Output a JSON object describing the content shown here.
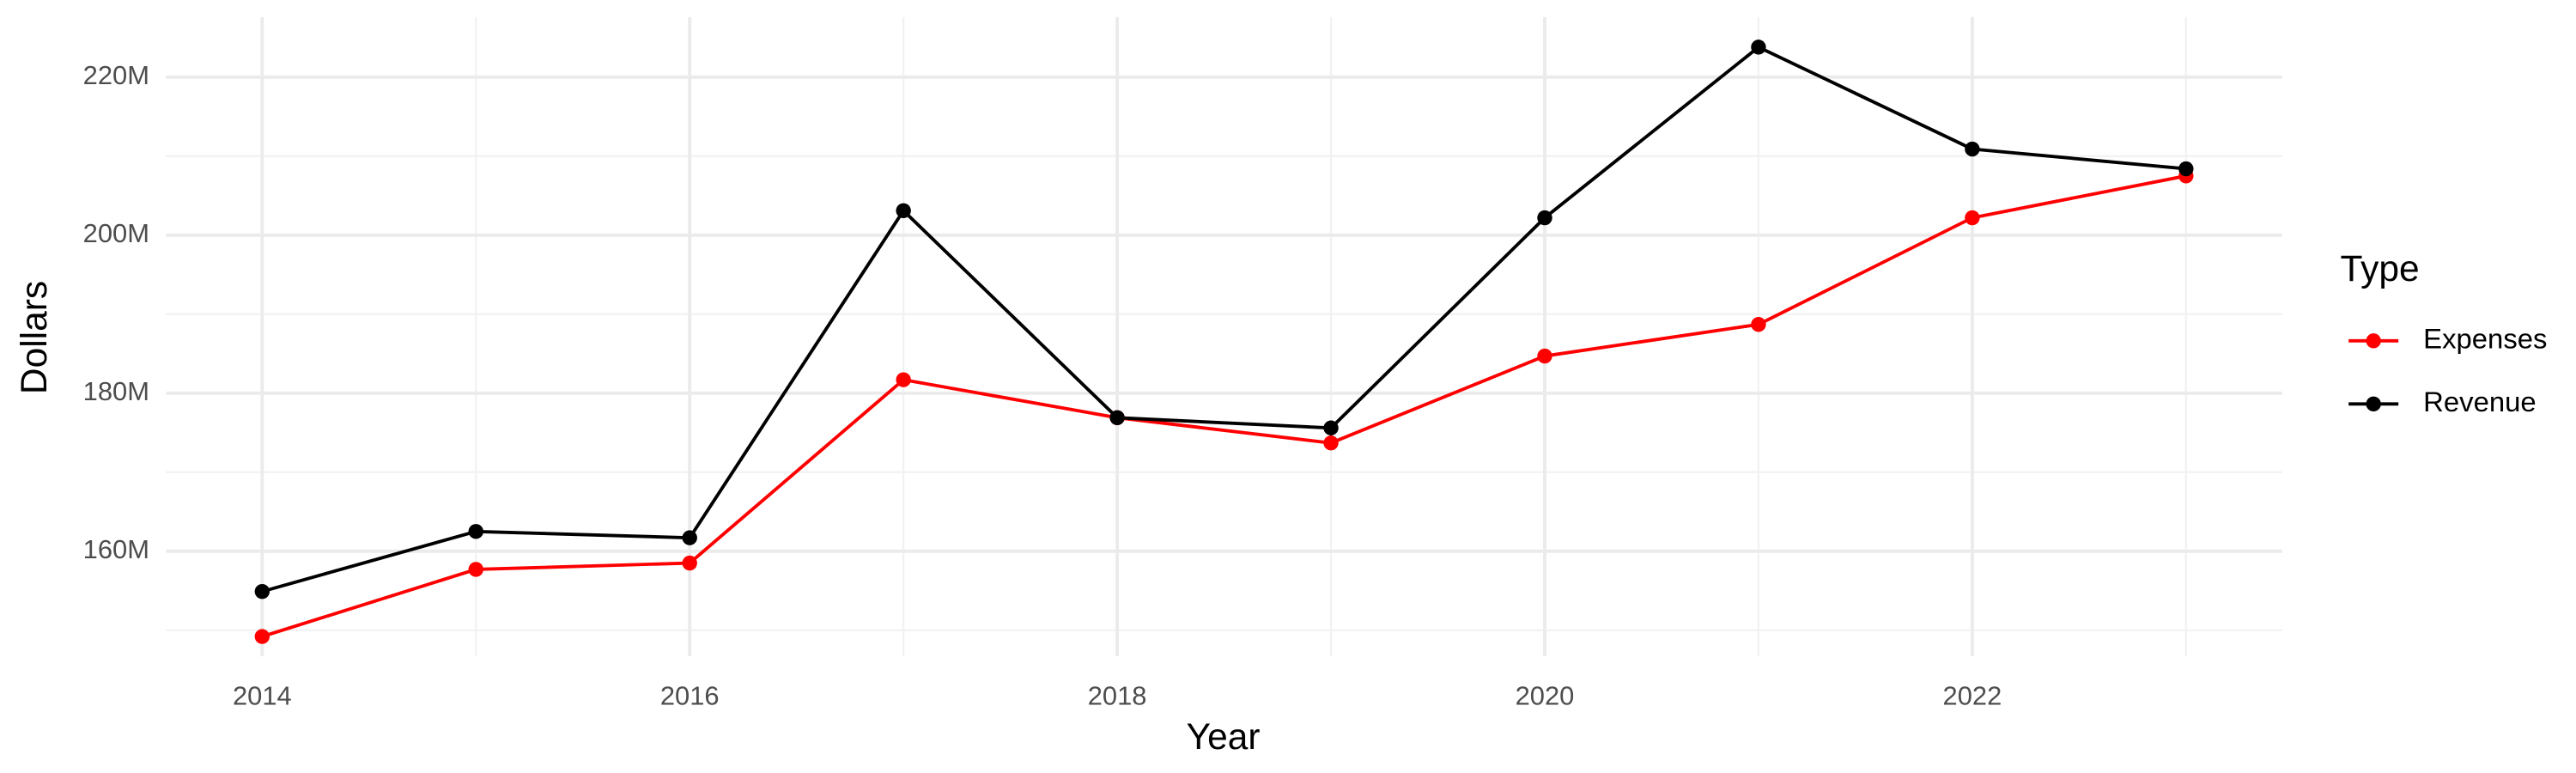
{
  "chart_data": {
    "type": "line",
    "x_label": "Year",
    "y_label": "Dollars",
    "legend_title": "Type",
    "x": [
      2014,
      2015,
      2016,
      2017,
      2018,
      2019,
      2020,
      2021,
      2022,
      2023
    ],
    "series": [
      {
        "name": "Expenses",
        "color": "#ff0000",
        "values": [
          149200000,
          157700000,
          158500000,
          181700000,
          176900000,
          173700000,
          184700000,
          188700000,
          202200000,
          207500000
        ]
      },
      {
        "name": "Revenue",
        "color": "#000000",
        "values": [
          154900000,
          162500000,
          161700000,
          203100000,
          176900000,
          175600000,
          202200000,
          223800000,
          210900000,
          208400000
        ]
      }
    ],
    "xlim": [
      2013.55,
      2023.45
    ],
    "xticks": [
      2014,
      2016,
      2018,
      2020,
      2022
    ],
    "ylim": [
      146700000,
      227600000
    ],
    "yticks": [
      {
        "value": 160000000,
        "label": "160M"
      },
      {
        "value": 180000000,
        "label": "180M"
      },
      {
        "value": 200000000,
        "label": "200M"
      },
      {
        "value": 220000000,
        "label": "220M"
      }
    ],
    "grid": true,
    "legend": "right"
  }
}
